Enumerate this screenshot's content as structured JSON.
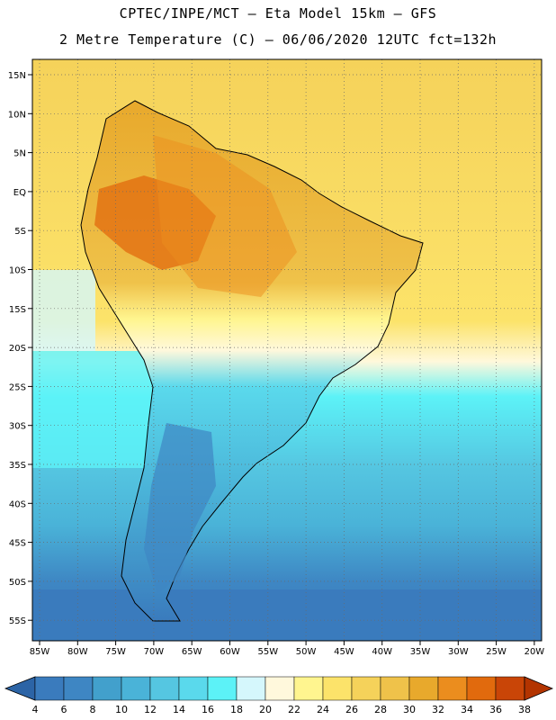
{
  "header": {
    "line1": "CPTEC/INPE/MCT –  Eta Model 15km – GFS",
    "line2": "2 Metre Temperature (C) – 06/06/2020 12UTC fct=132h"
  },
  "map": {
    "lat_labels": [
      "15N",
      "10N",
      "5N",
      "EQ",
      "5S",
      "10S",
      "15S",
      "20S",
      "25S",
      "30S",
      "35S",
      "40S",
      "45S",
      "50S",
      "55S"
    ],
    "lon_labels": [
      "85W",
      "80W",
      "75W",
      "70W",
      "65W",
      "60W",
      "55W",
      "50W",
      "45W",
      "40W",
      "35W",
      "30W",
      "25W",
      "20W"
    ]
  },
  "colorbar": {
    "labels": [
      "4",
      "6",
      "8",
      "10",
      "12",
      "14",
      "16",
      "18",
      "20",
      "22",
      "24",
      "26",
      "28",
      "30",
      "32",
      "34",
      "36",
      "38"
    ],
    "colors": [
      "#3a7bbd",
      "#3e86c3",
      "#42a0cc",
      "#4ab3d8",
      "#55c6e1",
      "#5ad9ec",
      "#5cf2f7",
      "#d5f7fc",
      "#fff8dc",
      "#fff58f",
      "#fce36a",
      "#f5d25a",
      "#efc24a",
      "#e8a92c",
      "#eb8d1e",
      "#e16a0d",
      "#c94507"
    ],
    "low_color": "#2c64a6",
    "high_color": "#b33400"
  }
}
